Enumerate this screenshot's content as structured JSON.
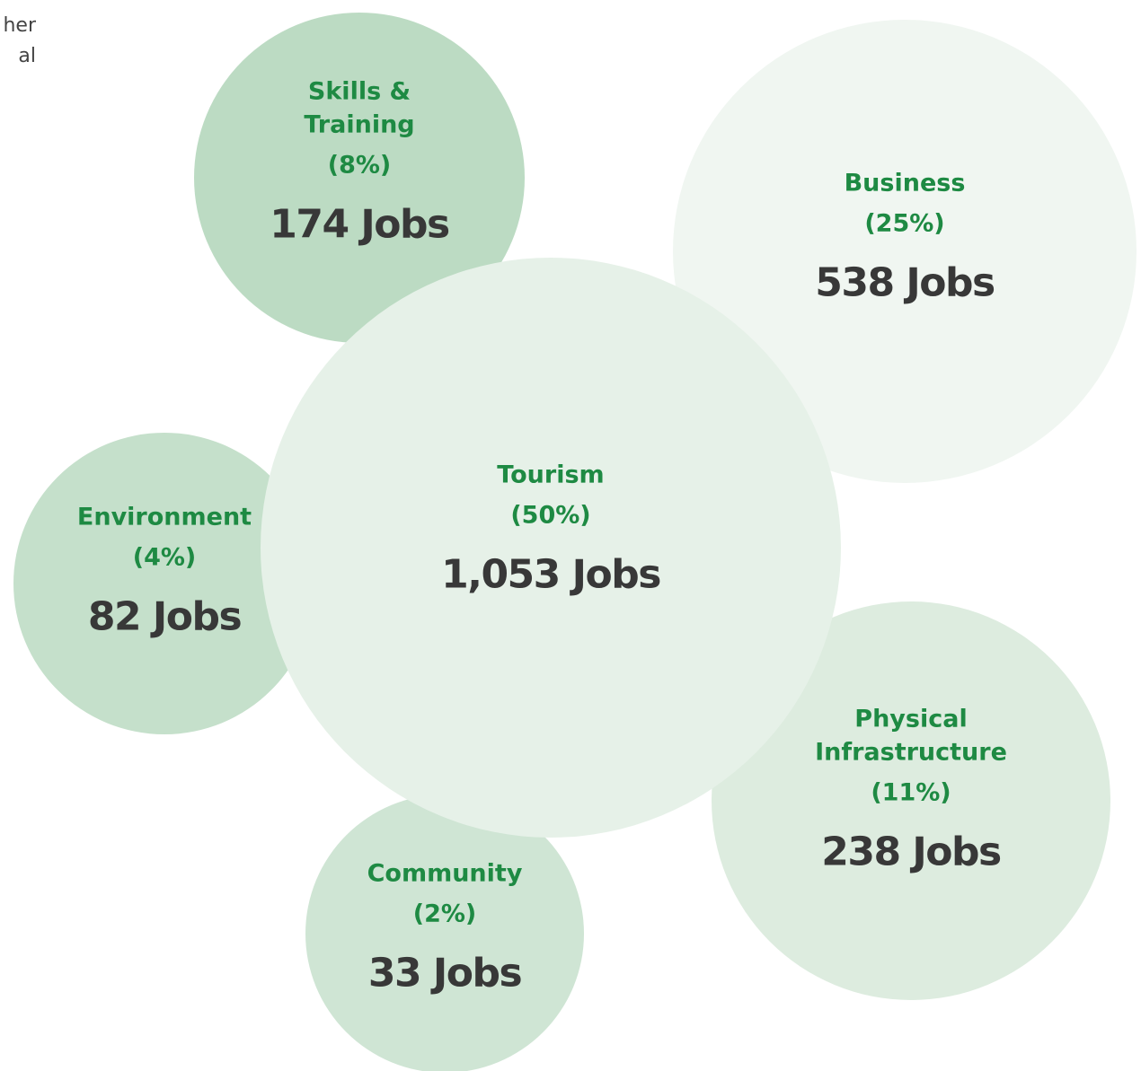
{
  "corner_text": [
    "her",
    "al"
  ],
  "colors": {
    "label_green": "#1e8a43",
    "jobs_dark": "#383838"
  },
  "chart_data": {
    "type": "bubble",
    "title": "",
    "bubbles": [
      {
        "label": "Skills &\nTraining",
        "percent": "(8%)",
        "jobs": "174 Jobs",
        "value": 174,
        "color": "#bcdbc3"
      },
      {
        "label": "Business",
        "percent": "(25%)",
        "jobs": "538 Jobs",
        "value": 538,
        "color": "#f0f6f1"
      },
      {
        "label": "Environment",
        "percent": "(4%)",
        "jobs": "82 Jobs",
        "value": 82,
        "color": "#c5e0cb"
      },
      {
        "label": "Tourism",
        "percent": "(50%)",
        "jobs": "1,053 Jobs",
        "value": 1053,
        "color": "#e6f1e8"
      },
      {
        "label": "Physical\nInfrastructure",
        "percent": "(11%)",
        "jobs": "238 Jobs",
        "value": 238,
        "color": "#ddecdf"
      },
      {
        "label": "Community",
        "percent": "(2%)",
        "jobs": "33 Jobs",
        "value": 33,
        "color": "#cfe5d4"
      }
    ]
  }
}
